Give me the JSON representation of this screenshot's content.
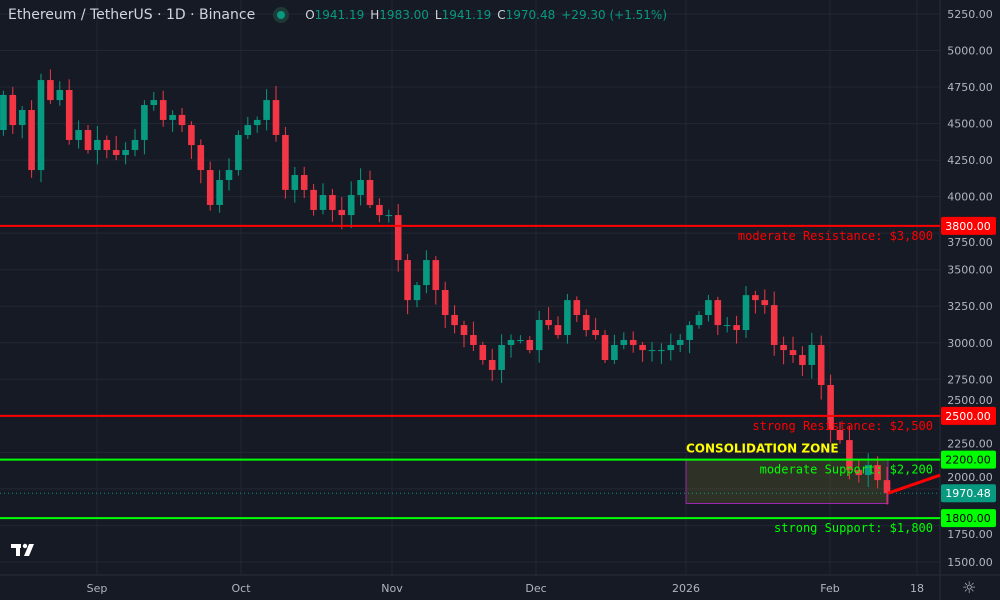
{
  "header": {
    "symbol": "Ethereum / TetherUS · 1D · Binance",
    "open_label": "O",
    "open": "1941.19",
    "high_label": "H",
    "high": "1983.00",
    "low_label": "L",
    "low": "1941.19",
    "close_label": "C",
    "close": "1970.48",
    "change": "+29.30 (+1.51%)"
  },
  "chart_data": {
    "type": "candlestick",
    "title": "Ethereum / TetherUS · 1D · Binance",
    "ylim": [
      1400,
      5350
    ],
    "grid": true,
    "y_ticks": [
      5250,
      5000,
      4750,
      4500,
      4250,
      4000,
      3750,
      3500,
      3250,
      3000,
      2750,
      2500,
      2250,
      2000,
      1750,
      1500
    ],
    "y_tick_labels": [
      "5250.00",
      "5000.00",
      "4750.00",
      "4500.00",
      "4250.00",
      "4000.00",
      "3750.00",
      "3500.00",
      "3250.00",
      "3000.00",
      "2750.00",
      "2500.00",
      "2250.00",
      "2000.00",
      "1750.00",
      "1500.00"
    ],
    "x_tick_labels": [
      "Sep",
      "Oct",
      "Nov",
      "Dec",
      "2026",
      "Feb",
      "18"
    ],
    "closes": [
      4456,
      4696,
      4490,
      4593,
      4182,
      4798,
      4661,
      4730,
      4388,
      4456,
      4319,
      4388,
      4319,
      4285,
      4319,
      4388,
      4627,
      4661,
      4525,
      4559,
      4490,
      4353,
      4182,
      3943,
      4114,
      4182,
      4422,
      4490,
      4525,
      4661,
      4422,
      4046,
      4148,
      4046,
      3909,
      4011,
      3909,
      3874,
      4011,
      4114,
      3943,
      3874,
      3874,
      3566,
      3292,
      3395,
      3566,
      3361,
      3190,
      3121,
      3053,
      2985,
      2882,
      2814,
      2985,
      3019,
      3019,
      2950,
      3156,
      3121,
      3053,
      3292,
      3190,
      3087,
      3053,
      2882,
      2985,
      3019,
      2985,
      2950,
      2950,
      2950,
      2985,
      3019,
      3121,
      3190,
      3292,
      3121,
      3121,
      3087,
      3326,
      3292,
      3258,
      2985,
      2950,
      2916,
      2848,
      2985,
      2711,
      2403,
      2334,
      2129,
      2095,
      2163,
      2060,
      1970.48
    ],
    "current_price": 1970.48,
    "current_price_label": "1970.48",
    "levels": [
      {
        "price": 3800,
        "label": "3800.00",
        "text": "moderate Resistance: $3,800",
        "color": "#ff0000"
      },
      {
        "price": 2500,
        "label": "2500.00",
        "text": "strong Resistance: $2,500",
        "color": "#ff0000"
      },
      {
        "price": 2200,
        "label": "2200.00",
        "text": "moderate Support: $2,200",
        "color": "#00ff00"
      },
      {
        "price": 1800,
        "label": "1800.00",
        "text": "strong Support: $1,800",
        "color": "#00ff00"
      }
    ],
    "zone": {
      "label": "CONSOLIDATION ZONE",
      "top": 2200,
      "bottom": 1900,
      "label_color": "#ffff00",
      "border_color": "#9c27b0"
    },
    "colors": {
      "up": "#089981",
      "down": "#f23645",
      "background": "#161a25",
      "grid": "#232733"
    }
  },
  "icons": {
    "logo": "tradingview-logo",
    "settings": "gear-icon"
  }
}
